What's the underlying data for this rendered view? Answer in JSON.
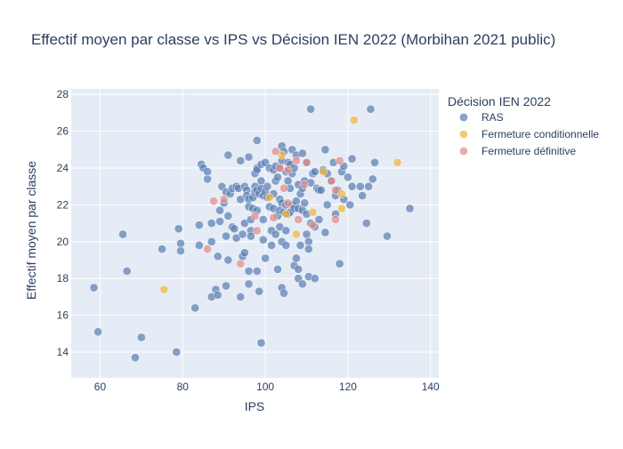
{
  "chart_data": {
    "type": "scatter",
    "title": "Effectif moyen par classe vs IPS vs Décision IEN 2022 (Morbihan 2021 public)",
    "xlabel": "IPS",
    "ylabel": "Effectif moyen par classe",
    "xlim": [
      53,
      142
    ],
    "ylim": [
      12.6,
      28.3
    ],
    "xticks": [
      60,
      80,
      100,
      120,
      140
    ],
    "yticks": [
      14,
      16,
      18,
      20,
      22,
      24,
      26,
      28
    ],
    "grid": true,
    "legend_title": "Décision IEN 2022",
    "legend_position": "right",
    "series": [
      {
        "name": "RAS",
        "color": "#5b7fb3",
        "points": [
          [
            58.5,
            17.5
          ],
          [
            59.5,
            15.1
          ],
          [
            65.5,
            20.4
          ],
          [
            66.5,
            18.4
          ],
          [
            68.5,
            13.7
          ],
          [
            70,
            14.8
          ],
          [
            75,
            19.6
          ],
          [
            78.5,
            14.0
          ],
          [
            79,
            20.7
          ],
          [
            79.5,
            19.9
          ],
          [
            79.5,
            19.5
          ],
          [
            83,
            16.4
          ],
          [
            84,
            20.9
          ],
          [
            84,
            19.8
          ],
          [
            84.5,
            24.2
          ],
          [
            85,
            24.0
          ],
          [
            86,
            23.4
          ],
          [
            86,
            23.8
          ],
          [
            87,
            21.0
          ],
          [
            87,
            20.0
          ],
          [
            87,
            17.0
          ],
          [
            88,
            17.4
          ],
          [
            88.5,
            19.2
          ],
          [
            88.5,
            17.1
          ],
          [
            89,
            21.1
          ],
          [
            89,
            21.7
          ],
          [
            89.5,
            23.0
          ],
          [
            90,
            22.1
          ],
          [
            90.5,
            22.7
          ],
          [
            90.5,
            20.3
          ],
          [
            90.5,
            17.6
          ],
          [
            91,
            21.4
          ],
          [
            91,
            19.0
          ],
          [
            91,
            24.7
          ],
          [
            91.5,
            22.6
          ],
          [
            92,
            22.9
          ],
          [
            92,
            20.8
          ],
          [
            92.5,
            20.7
          ],
          [
            93,
            23.0
          ],
          [
            93,
            20.2
          ],
          [
            93.5,
            22.9
          ],
          [
            94,
            24.4
          ],
          [
            94,
            22.3
          ],
          [
            94,
            17.0
          ],
          [
            94.5,
            19.2
          ],
          [
            94.5,
            20.4
          ],
          [
            95,
            23.0
          ],
          [
            95,
            21.0
          ],
          [
            95,
            19.4
          ],
          [
            95.5,
            22.8
          ],
          [
            95.5,
            22.5
          ],
          [
            96,
            24.6
          ],
          [
            96,
            22.3
          ],
          [
            96,
            21.9
          ],
          [
            96,
            17.7
          ],
          [
            96,
            18.4
          ],
          [
            96.5,
            21.2
          ],
          [
            96.5,
            20.6
          ],
          [
            96.5,
            20.3
          ],
          [
            97,
            22.4
          ],
          [
            97,
            21.8
          ],
          [
            97.5,
            23.0
          ],
          [
            97.5,
            22.7
          ],
          [
            97.5,
            23.7
          ],
          [
            98,
            24.0
          ],
          [
            98,
            25.5
          ],
          [
            98,
            23.9
          ],
          [
            98,
            22.8
          ],
          [
            98,
            21.7
          ],
          [
            98,
            18.4
          ],
          [
            98.5,
            22.6
          ],
          [
            98.5,
            17.3
          ],
          [
            99,
            24.2
          ],
          [
            99,
            23.3
          ],
          [
            99,
            22.9
          ],
          [
            99,
            14.5
          ],
          [
            99.5,
            22.5
          ],
          [
            99.5,
            21.2
          ],
          [
            99.5,
            20.1
          ],
          [
            100,
            24.3
          ],
          [
            100,
            22.7
          ],
          [
            100,
            19.1
          ],
          [
            100.5,
            23.0
          ],
          [
            100.5,
            22.4
          ],
          [
            101,
            24.0
          ],
          [
            101,
            21.9
          ],
          [
            101.5,
            20.6
          ],
          [
            101.5,
            19.8
          ],
          [
            102,
            23.9
          ],
          [
            102,
            22.6
          ],
          [
            102,
            21.8
          ],
          [
            102.5,
            24.1
          ],
          [
            102.5,
            23.3
          ],
          [
            102.5,
            20.4
          ],
          [
            103,
            23.5
          ],
          [
            103,
            21.4
          ],
          [
            103,
            18.5
          ],
          [
            103.5,
            24.0
          ],
          [
            103.5,
            22.3
          ],
          [
            103.5,
            21.7
          ],
          [
            103.5,
            20.8
          ],
          [
            104,
            25.2
          ],
          [
            104,
            24.4
          ],
          [
            104,
            22.1
          ],
          [
            104,
            20.0
          ],
          [
            104,
            17.5
          ],
          [
            104.5,
            24.9
          ],
          [
            104.5,
            21.6
          ],
          [
            104.5,
            17.2
          ],
          [
            105,
            23.8
          ],
          [
            105,
            22.0
          ],
          [
            105,
            20.6
          ],
          [
            105,
            19.8
          ],
          [
            105.5,
            24.3
          ],
          [
            105.5,
            23.3
          ],
          [
            105.5,
            21.5
          ],
          [
            106,
            24.2
          ],
          [
            106,
            22.9
          ],
          [
            106,
            21.6
          ],
          [
            106.5,
            25.0
          ],
          [
            106.5,
            23.7
          ],
          [
            106.5,
            22.0
          ],
          [
            107,
            24.0
          ],
          [
            107,
            21.8
          ],
          [
            107,
            18.7
          ],
          [
            107.5,
            24.7
          ],
          [
            107.5,
            22.2
          ],
          [
            107.5,
            19.1
          ],
          [
            108,
            23.1
          ],
          [
            108,
            21.8
          ],
          [
            108,
            18.5
          ],
          [
            108,
            18.0
          ],
          [
            108.5,
            22.6
          ],
          [
            108.5,
            19.8
          ],
          [
            109,
            24.8
          ],
          [
            109,
            22.9
          ],
          [
            109,
            21.7
          ],
          [
            109,
            17.7
          ],
          [
            109.5,
            23.3
          ],
          [
            109.5,
            22.1
          ],
          [
            110,
            24.3
          ],
          [
            110,
            21.5
          ],
          [
            110,
            20.4
          ],
          [
            110.5,
            20.0
          ],
          [
            110.5,
            19.6
          ],
          [
            110.5,
            18.1
          ],
          [
            111,
            27.2
          ],
          [
            111,
            23.2
          ],
          [
            111,
            21.0
          ],
          [
            111.5,
            23.7
          ],
          [
            112,
            23.8
          ],
          [
            112,
            20.8
          ],
          [
            112,
            18.0
          ],
          [
            112.5,
            22.9
          ],
          [
            113,
            22.8
          ],
          [
            113,
            21.2
          ],
          [
            113.5,
            22.8
          ],
          [
            114,
            23.9
          ],
          [
            114.5,
            25.0
          ],
          [
            114.5,
            20.5
          ],
          [
            115,
            23.7
          ],
          [
            115,
            22.0
          ],
          [
            116,
            23.3
          ],
          [
            116.5,
            24.3
          ],
          [
            117,
            22.5
          ],
          [
            117,
            21.5
          ],
          [
            117.5,
            22.8
          ],
          [
            118,
            18.8
          ],
          [
            118.5,
            23.8
          ],
          [
            119,
            24.1
          ],
          [
            119,
            22.3
          ],
          [
            120,
            23.5
          ],
          [
            120.5,
            22.0
          ],
          [
            121,
            24.5
          ],
          [
            121,
            23.0
          ],
          [
            123,
            23.0
          ],
          [
            123.5,
            22.5
          ],
          [
            124.5,
            21.0
          ],
          [
            125,
            23.0
          ],
          [
            125.5,
            27.2
          ],
          [
            126,
            23.4
          ],
          [
            126.5,
            24.3
          ],
          [
            129.5,
            20.3
          ],
          [
            135,
            21.8
          ]
        ]
      },
      {
        "name": "Fermeture conditionnelle",
        "color": "#f2b63e",
        "points": [
          [
            75.5,
            17.4
          ],
          [
            101,
            22.4
          ],
          [
            104,
            24.7
          ],
          [
            105,
            21.5
          ],
          [
            107.5,
            20.4
          ],
          [
            111.5,
            21.6
          ],
          [
            114,
            23.8
          ],
          [
            118.5,
            22.6
          ],
          [
            118.5,
            21.8
          ],
          [
            121.5,
            26.6
          ],
          [
            132,
            24.3
          ]
        ]
      },
      {
        "name": "Fermeture définitive",
        "color": "#e48a8a",
        "points": [
          [
            86,
            19.6
          ],
          [
            87.5,
            22.2
          ],
          [
            90,
            22.3
          ],
          [
            94,
            18.8
          ],
          [
            97.5,
            21.4
          ],
          [
            98,
            20.6
          ],
          [
            102,
            21.3
          ],
          [
            102.5,
            24.9
          ],
          [
            103.5,
            24.0
          ],
          [
            104.5,
            22.9
          ],
          [
            105.5,
            23.9
          ],
          [
            105.5,
            22.1
          ],
          [
            107.5,
            24.4
          ],
          [
            108,
            21.2
          ],
          [
            109.5,
            23.1
          ],
          [
            110,
            24.3
          ],
          [
            111.5,
            20.9
          ],
          [
            116,
            23.3
          ],
          [
            117,
            21.2
          ],
          [
            117,
            22.8
          ],
          [
            118,
            24.4
          ]
        ]
      }
    ]
  }
}
